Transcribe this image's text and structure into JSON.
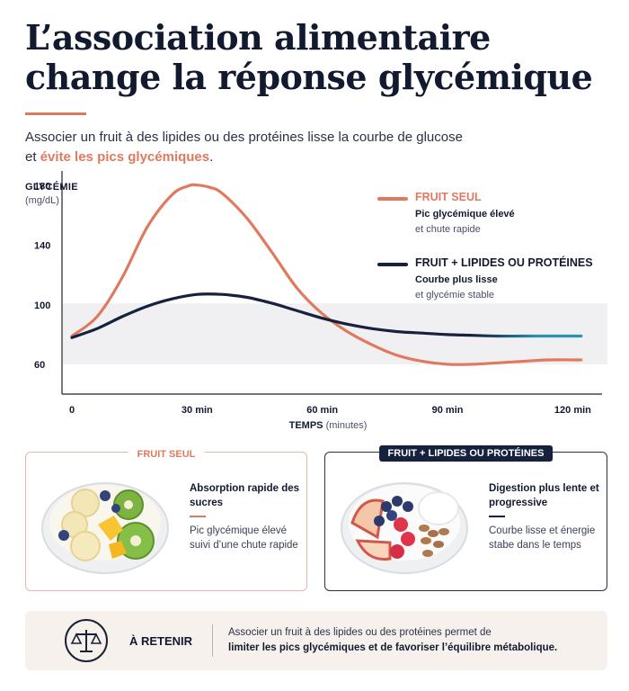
{
  "title": "L’association alimentaire change la réponse glycémique",
  "subtitle": {
    "line1": "Associer un fruit à des lipides ou des protéines lisse la courbe de glucose",
    "line2_prefix": "et ",
    "line2_accent": "évite les pics glycémiques",
    "line2_suffix": "."
  },
  "colors": {
    "accent": "#e07a5f",
    "navy": "#16213e",
    "teal": "#2a93b0",
    "band": "#f0f0f2"
  },
  "chart_data": {
    "type": "line",
    "ylabel": "GLYCÉMIE",
    "yunit": "(mg/dL)",
    "xlabel": "TEMPS",
    "xunit": "(minutes)",
    "yticks": [
      60,
      100,
      140,
      180
    ],
    "xticks": [
      0,
      30,
      60,
      90,
      120
    ],
    "xtick_labels": [
      "0",
      "30 min",
      "60 min",
      "90 min",
      "120 min"
    ],
    "xlim": [
      0,
      124
    ],
    "ylim": [
      40,
      190
    ],
    "normal_band": [
      60,
      101
    ],
    "series": [
      {
        "name": "FRUIT SEUL",
        "color": "#e07a5f",
        "desc_bold": "Pic glycémique élevé",
        "desc": "et chute rapide",
        "x": [
          0,
          6,
          12,
          18,
          24,
          28,
          30,
          33,
          36,
          42,
          48,
          54,
          60,
          66,
          72,
          78,
          84,
          90,
          96,
          102,
          108,
          114,
          120,
          122
        ],
        "y": [
          79,
          92,
          118,
          152,
          174,
          180,
          180.5,
          179,
          175,
          158,
          135,
          111,
          94,
          82,
          73,
          66,
          62,
          60,
          60,
          61,
          62,
          63,
          63,
          63
        ]
      },
      {
        "name": "FRUIT + LIPIDES OU PROTÉINES",
        "color": "#16213e",
        "desc_bold": "Courbe plus lisse",
        "desc": "et glycémie stable",
        "x": [
          0,
          6,
          12,
          18,
          24,
          30,
          36,
          42,
          48,
          54,
          60,
          66,
          72,
          78,
          84,
          90,
          96,
          102,
          108,
          114,
          120,
          122
        ],
        "y": [
          78,
          84,
          92,
          99,
          104,
          107,
          107,
          105,
          101,
          96,
          91,
          87,
          84,
          82,
          81,
          80,
          79.5,
          79,
          79,
          79,
          79,
          79
        ]
      }
    ]
  },
  "cards": [
    {
      "tag": "FRUIT SEUL",
      "title": "Absorption rapide des sucres",
      "text": "Pic glycémique élevé suivi d’une chute rapide"
    },
    {
      "tag": "FRUIT + LIPIDES OU PROTÉINES",
      "title": "Digestion plus lente et progressive",
      "text": "Courbe lisse et énergie stabe dans le temps"
    }
  ],
  "keep": {
    "label": "À RETENIR",
    "text_line1": "Associer un fruit à des lipides ou des protéines permet de",
    "text_line2": "limiter les pics glycémiques et de favoriser l’équilibre métabolique."
  },
  "icons": {
    "keep_icon": "balance-scale-icon"
  }
}
